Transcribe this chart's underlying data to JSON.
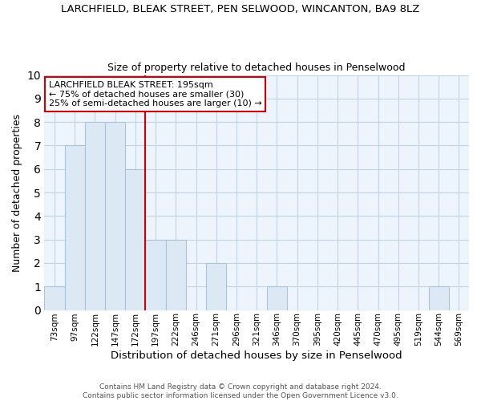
{
  "title": "LARCHFIELD, BLEAK STREET, PEN SELWOOD, WINCANTON, BA9 8LZ",
  "subtitle": "Size of property relative to detached houses in Penselwood",
  "xlabel": "Distribution of detached houses by size in Penselwood",
  "ylabel": "Number of detached properties",
  "categories": [
    "73sqm",
    "97sqm",
    "122sqm",
    "147sqm",
    "172sqm",
    "197sqm",
    "222sqm",
    "246sqm",
    "271sqm",
    "296sqm",
    "321sqm",
    "346sqm",
    "370sqm",
    "395sqm",
    "420sqm",
    "445sqm",
    "470sqm",
    "495sqm",
    "519sqm",
    "544sqm",
    "569sqm"
  ],
  "values": [
    1,
    7,
    8,
    8,
    6,
    3,
    3,
    0,
    2,
    0,
    0,
    1,
    0,
    0,
    0,
    0,
    0,
    0,
    0,
    1,
    0
  ],
  "bar_color": "#dce9f5",
  "bar_edge_color": "#a8c4dc",
  "vline_x_index": 5,
  "vline_color": "#cc0000",
  "annotation_line1": "LARCHFIELD BLEAK STREET: 195sqm",
  "annotation_line2": "← 75% of detached houses are smaller (30)",
  "annotation_line3": "25% of semi-detached houses are larger (10) →",
  "annotation_box_color": "#cc0000",
  "ylim": [
    0,
    10
  ],
  "yticks": [
    0,
    1,
    2,
    3,
    4,
    5,
    6,
    7,
    8,
    9,
    10
  ],
  "grid_color": "#c0d4e8",
  "bg_color": "#eef4fb",
  "footer_line1": "Contains HM Land Registry data © Crown copyright and database right 2024.",
  "footer_line2": "Contains public sector information licensed under the Open Government Licence v3.0."
}
